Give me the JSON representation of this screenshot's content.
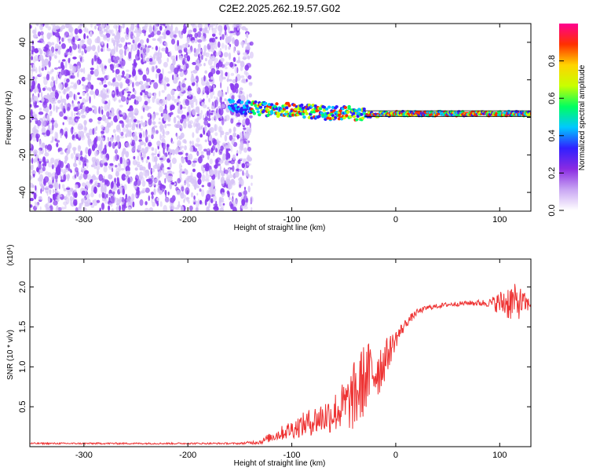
{
  "title": "C2E2.2025.262.19.57.G02",
  "colors": {
    "spectro_noise": "#8a3cf0",
    "spectro_noise_light": "#d8c6f7",
    "snr_line": "#ee3333",
    "colorbar": [
      "#ffffff",
      "#c9a6f3",
      "#8a2be2",
      "#3020ff",
      "#00c8ff",
      "#00ff60",
      "#c8ff00",
      "#ffd400",
      "#ff3000",
      "#ff0090"
    ]
  },
  "chart_data": [
    {
      "type": "heatmap",
      "name": "spectrogram",
      "xlabel": "Height of straight line (km)",
      "ylabel": "Frequency (Hz)",
      "xlim": [
        -352,
        130
      ],
      "ylim": [
        -50,
        50
      ],
      "xticks": [
        -300,
        -200,
        -100,
        0,
        100
      ],
      "xtick_labels": [
        "-300",
        "-200",
        "-100",
        "0",
        "100"
      ],
      "yticks": [
        -40,
        -20,
        0,
        20,
        40
      ],
      "ytick_labels": [
        "-40",
        "-20",
        "0",
        "20",
        "40"
      ],
      "noise_region_x": [
        -352,
        -143
      ],
      "signal_track": {
        "x": [
          -160,
          -140,
          -120,
          -100,
          -80,
          -60,
          -45,
          -35,
          -20,
          0,
          50,
          100,
          130
        ],
        "freq": [
          6,
          5,
          4,
          4,
          3,
          2,
          3,
          1,
          1.5,
          2,
          2,
          2,
          2
        ]
      },
      "colorbar": {
        "label": "Normalized spectral amplitude",
        "ticks": [
          0.0,
          0.2,
          0.4,
          0.6,
          0.8
        ],
        "tick_labels": [
          "0.0",
          "0.2",
          "0.4",
          "0.6",
          "0.8"
        ]
      }
    },
    {
      "type": "line",
      "name": "snr",
      "xlabel": "Height of straight line (km)",
      "ylabel": "SNR (10 * v/v)",
      "scale_label": "(x10⁴)",
      "xlim": [
        -352,
        130
      ],
      "ylim": [
        0,
        2.35
      ],
      "xticks": [
        -300,
        -200,
        -100,
        0,
        100
      ],
      "xtick_labels": [
        "-300",
        "-200",
        "-100",
        "0",
        "100"
      ],
      "yticks": [
        0.5,
        1.0,
        1.5,
        2.0
      ],
      "ytick_labels": [
        "0.5",
        "1.0",
        "1.5",
        "2.0"
      ],
      "envelope": {
        "x": [
          -352,
          -300,
          -250,
          -200,
          -150,
          -130,
          -120,
          -100,
          -80,
          -60,
          -45,
          -40,
          -35,
          -30,
          -20,
          -15,
          -10,
          0,
          10,
          20,
          30,
          50,
          70,
          90,
          100,
          110,
          120,
          130
        ],
        "mean": [
          0.04,
          0.04,
          0.04,
          0.04,
          0.04,
          0.06,
          0.12,
          0.22,
          0.32,
          0.42,
          0.55,
          0.62,
          0.72,
          0.85,
          0.95,
          1.0,
          1.1,
          1.35,
          1.55,
          1.68,
          1.74,
          1.78,
          1.8,
          1.8,
          1.8,
          1.82,
          1.8,
          1.78
        ],
        "noise": [
          0.01,
          0.01,
          0.01,
          0.01,
          0.01,
          0.03,
          0.06,
          0.12,
          0.18,
          0.25,
          0.35,
          0.45,
          0.5,
          0.45,
          0.4,
          0.35,
          0.25,
          0.12,
          0.06,
          0.04,
          0.03,
          0.03,
          0.03,
          0.05,
          0.15,
          0.25,
          0.2,
          0.05
        ]
      }
    }
  ]
}
